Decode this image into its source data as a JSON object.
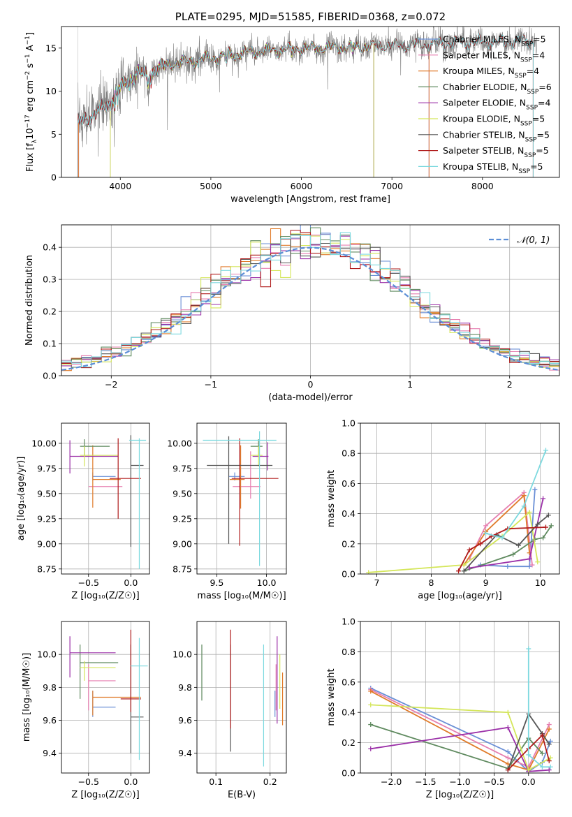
{
  "colors": {
    "Chabrier MILES": "#6a8fd6",
    "Salpeter MILES": "#e67fb0",
    "Kroupa MILES": "#e07b2a",
    "Chabrier ELODIE": "#5f8a5f",
    "Salpeter ELODIE": "#9b30a8",
    "Kroupa ELODIE": "#d4e65a",
    "Chabrier STELIB": "#555555",
    "Salpeter STELIB": "#b01c1c",
    "Kroupa STELIB": "#7dd9df",
    "observed": "#808080",
    "gaussian": "#5b8ed6"
  },
  "chart_data": [
    {
      "id": "spectrum",
      "type": "line",
      "title": "PLATE=0295, MJD=51585, FIBERID=0368, z=0.072",
      "xlabel": "wavelength [Angstrom, rest frame]",
      "ylabel_main": "Flux [f",
      "ylabel_sub": "λ",
      "ylabel_rest": "10",
      "ylabel_exp": "−17",
      "ylabel_units": "erg cm",
      "xlim": [
        3350,
        8850
      ],
      "ylim": [
        0,
        17.5
      ],
      "xticks": [
        4000,
        5000,
        6000,
        7000,
        8000
      ],
      "yticks": [
        0,
        5,
        10,
        15
      ],
      "grid": false,
      "legend_position": "upper-right",
      "continuum_nodes": [
        [
          3520,
          6.2
        ],
        [
          3600,
          6.8
        ],
        [
          3700,
          7.2
        ],
        [
          3800,
          8.0
        ],
        [
          3870,
          8.5
        ],
        [
          3950,
          9.6
        ],
        [
          4000,
          10.4
        ],
        [
          4100,
          11.4
        ],
        [
          4200,
          12.2
        ],
        [
          4300,
          11.8
        ],
        [
          4400,
          12.6
        ],
        [
          4500,
          13.0
        ],
        [
          4700,
          13.4
        ],
        [
          4900,
          13.7
        ],
        [
          5000,
          13.8
        ],
        [
          5200,
          14.3
        ],
        [
          5500,
          14.6
        ],
        [
          6000,
          15.0
        ],
        [
          6500,
          15.1
        ],
        [
          7000,
          15.3
        ],
        [
          7500,
          15.5
        ],
        [
          8000,
          15.7
        ],
        [
          8500,
          15.8
        ],
        [
          8600,
          15.8
        ]
      ],
      "series": [
        {
          "name": "Chabrier MILES",
          "nssp": "5"
        },
        {
          "name": "Salpeter MILES",
          "nssp": "4"
        },
        {
          "name": "Kroupa MILES",
          "nssp": "4"
        },
        {
          "name": "Chabrier ELODIE",
          "nssp": "6"
        },
        {
          "name": "Salpeter ELODIE",
          "nssp": "4"
        },
        {
          "name": "Kroupa ELODIE",
          "nssp": "5"
        },
        {
          "name": "Chabrier STELIB",
          "nssp": "5"
        },
        {
          "name": "Salpeter STELIB",
          "nssp": "5"
        },
        {
          "name": "Kroupa STELIB",
          "nssp": "5"
        }
      ]
    },
    {
      "id": "residuals",
      "type": "line",
      "xlabel": "(data-model)/error",
      "ylabel": "Normed distribution",
      "xlim": [
        -2.5,
        2.5
      ],
      "ylim": [
        0,
        0.47
      ],
      "xticks": [
        -2,
        -1,
        0,
        1,
        2
      ],
      "yticks": [
        0.0,
        0.1,
        0.2,
        0.3,
        0.4
      ],
      "grid": true,
      "legend_position": "upper-right",
      "legend_label": "𝒩(0, 1)",
      "bin_width": 0.1
    },
    {
      "id": "age-vs-Z",
      "type": "scatter",
      "xlabel": "Z [log₁₀(Z/Z☉)]",
      "ylabel": "age  [log₁₀(age/yr)]",
      "xlim": [
        -0.82,
        0.22
      ],
      "ylim": [
        8.7,
        10.2
      ],
      "xticks": [
        -0.5,
        0.0
      ],
      "yticks": [
        8.75,
        9.0,
        9.25,
        9.5,
        9.75,
        10.0
      ],
      "grid": true,
      "points": [
        {
          "series": "Chabrier MILES",
          "x": -0.45,
          "y": 9.67,
          "xlo": -0.45,
          "xhi": -0.18,
          "ylo": 9.63,
          "yhi": 9.71
        },
        {
          "series": "Salpeter MILES",
          "x": -0.5,
          "y": 9.57,
          "xlo": -0.5,
          "xhi": -0.1,
          "ylo": 9.57,
          "yhi": 9.57
        },
        {
          "series": "Kroupa MILES",
          "x": -0.45,
          "y": 9.64,
          "xlo": -0.45,
          "xhi": -0.12,
          "ylo": 9.36,
          "yhi": 9.98
        },
        {
          "series": "Chabrier ELODIE",
          "x": -0.55,
          "y": 9.97,
          "xlo": -0.6,
          "xhi": -0.25,
          "ylo": 9.87,
          "yhi": 10.04
        },
        {
          "series": "Salpeter ELODIE",
          "x": -0.72,
          "y": 9.87,
          "xlo": -0.72,
          "xhi": -0.15,
          "ylo": 9.7,
          "yhi": 10.03
        },
        {
          "series": "Kroupa ELODIE",
          "x": -0.55,
          "y": 9.88,
          "xlo": -0.6,
          "xhi": -0.15,
          "ylo": 9.77,
          "yhi": 9.97
        },
        {
          "series": "Chabrier STELIB",
          "x": 0.0,
          "y": 9.78,
          "xlo": 0.0,
          "xhi": 0.15,
          "ylo": 8.97,
          "yhi": 10.08
        },
        {
          "series": "Salpeter STELIB",
          "x": -0.15,
          "y": 9.65,
          "xlo": -0.25,
          "xhi": 0.12,
          "ylo": 9.25,
          "yhi": 10.05
        },
        {
          "series": "Kroupa STELIB",
          "x": 0.1,
          "y": 10.03,
          "xlo": -0.02,
          "xhi": 0.18,
          "ylo": 8.75,
          "yhi": 10.05
        }
      ]
    },
    {
      "id": "age-vs-mass",
      "type": "scatter",
      "xlabel": "mass [log₁₀(M/M☉)]",
      "ylabel": "",
      "xlim": [
        9.3,
        10.2
      ],
      "ylim": [
        8.7,
        10.2
      ],
      "xticks": [
        9.5,
        10.0
      ],
      "yticks": [
        8.75,
        9.0,
        9.25,
        9.5,
        9.75,
        10.0
      ],
      "grid": true,
      "points": [
        {
          "series": "Chabrier MILES",
          "x": 9.68,
          "y": 9.67,
          "xlo": 9.62,
          "xhi": 9.78,
          "ylo": 9.63,
          "yhi": 9.71
        },
        {
          "series": "Salpeter MILES",
          "x": 9.84,
          "y": 9.57,
          "xlo": 9.66,
          "xhi": 9.94,
          "ylo": 9.45,
          "yhi": 9.92
        },
        {
          "series": "Kroupa MILES",
          "x": 9.74,
          "y": 9.64,
          "xlo": 9.63,
          "xhi": 9.78,
          "ylo": 9.35,
          "yhi": 9.98
        },
        {
          "series": "Chabrier ELODIE",
          "x": 9.92,
          "y": 9.97,
          "xlo": 9.84,
          "xhi": 9.96,
          "ylo": 9.87,
          "yhi": 10.04
        },
        {
          "series": "Salpeter ELODIE",
          "x": 10.01,
          "y": 9.87,
          "xlo": 9.86,
          "xhi": 10.02,
          "ylo": 9.73,
          "yhi": 10.01
        },
        {
          "series": "Kroupa ELODIE",
          "x": 9.92,
          "y": 9.88,
          "xlo": 9.84,
          "xhi": 9.96,
          "ylo": 9.77,
          "yhi": 9.97
        },
        {
          "series": "Chabrier STELIB",
          "x": 9.62,
          "y": 9.78,
          "xlo": 9.4,
          "xhi": 10.06,
          "ylo": 9.0,
          "yhi": 10.07
        },
        {
          "series": "Salpeter STELIB",
          "x": 9.73,
          "y": 9.65,
          "xlo": 9.65,
          "xhi": 10.12,
          "ylo": 8.98,
          "yhi": 10.05
        },
        {
          "series": "Kroupa STELIB",
          "x": 9.93,
          "y": 10.03,
          "xlo": 9.36,
          "xhi": 10.1,
          "ylo": 8.78,
          "yhi": 10.12
        }
      ]
    },
    {
      "id": "weight-vs-age",
      "type": "line",
      "xlabel": "age  [log₁₀(age/yr)]",
      "ylabel": "mass weight",
      "xlim": [
        6.7,
        10.35
      ],
      "ylim": [
        0,
        1
      ],
      "xticks": [
        7,
        8,
        9,
        10
      ],
      "yticks": [
        0.0,
        0.2,
        0.4,
        0.6,
        0.8,
        1.0
      ],
      "grid": true,
      "series": [
        {
          "name": "Chabrier MILES",
          "x": [
            8.9,
            9.4,
            9.8,
            9.9
          ],
          "y": [
            0.06,
            0.05,
            0.05,
            0.56
          ]
        },
        {
          "name": "Salpeter MILES",
          "x": [
            8.7,
            9.0,
            9.7,
            9.85
          ],
          "y": [
            0.1,
            0.32,
            0.54,
            0.06
          ]
        },
        {
          "name": "Kroupa MILES",
          "x": [
            8.6,
            9.0,
            9.7,
            9.8
          ],
          "y": [
            0.06,
            0.28,
            0.52,
            0.14
          ]
        },
        {
          "name": "Chabrier ELODIE",
          "x": [
            8.6,
            9.5,
            9.9,
            10.05,
            10.2
          ],
          "y": [
            0.02,
            0.13,
            0.23,
            0.24,
            0.32
          ]
        },
        {
          "name": "Salpeter ELODIE",
          "x": [
            8.7,
            9.8,
            10.05
          ],
          "y": [
            0.04,
            0.1,
            0.5
          ]
        },
        {
          "name": "Kroupa ELODIE",
          "x": [
            6.85,
            8.6,
            9.3,
            9.8,
            9.95
          ],
          "y": [
            0.01,
            0.06,
            0.25,
            0.41,
            0.08
          ]
        },
        {
          "name": "Chabrier STELIB",
          "x": [
            8.6,
            9.2,
            9.6,
            9.95,
            10.15
          ],
          "y": [
            0.02,
            0.26,
            0.19,
            0.33,
            0.39
          ]
        },
        {
          "name": "Salpeter STELIB",
          "x": [
            8.5,
            8.7,
            8.9,
            9.1,
            9.4,
            10.1
          ],
          "y": [
            0.02,
            0.16,
            0.2,
            0.25,
            0.3,
            0.31
          ]
        },
        {
          "name": "Kroupa STELIB",
          "x": [
            9.0,
            9.3,
            9.7,
            10.1
          ],
          "y": [
            0.27,
            0.24,
            0.45,
            0.82
          ]
        }
      ]
    },
    {
      "id": "mass-vs-Z",
      "type": "scatter",
      "xlabel": "Z [log₁₀(Z/Z☉)]",
      "ylabel": "mass [log₁₀(M/M☉)]",
      "xlim": [
        -0.82,
        0.22
      ],
      "ylim": [
        9.28,
        10.2
      ],
      "xticks": [
        -0.5,
        0.0
      ],
      "yticks": [
        9.4,
        9.6,
        9.8,
        10.0
      ],
      "grid": true,
      "points": [
        {
          "series": "Chabrier MILES",
          "x": -0.45,
          "y": 9.68,
          "xlo": -0.45,
          "xhi": -0.18,
          "ylo": 9.62,
          "yhi": 9.78
        },
        {
          "series": "Salpeter MILES",
          "x": -0.5,
          "y": 9.84,
          "xlo": -0.5,
          "xhi": -0.18,
          "ylo": 9.66,
          "yhi": 9.94
        },
        {
          "series": "Kroupa MILES",
          "x": -0.45,
          "y": 9.74,
          "xlo": -0.45,
          "xhi": 0.12,
          "ylo": 9.63,
          "yhi": 9.78
        },
        {
          "series": "Chabrier ELODIE",
          "x": -0.6,
          "y": 9.95,
          "xlo": -0.6,
          "xhi": -0.15,
          "ylo": 9.73,
          "yhi": 10.06
        },
        {
          "series": "Salpeter ELODIE",
          "x": -0.72,
          "y": 10.01,
          "xlo": -0.72,
          "xhi": -0.18,
          "ylo": 9.86,
          "yhi": 10.11
        },
        {
          "series": "Kroupa ELODIE",
          "x": -0.55,
          "y": 9.92,
          "xlo": -0.6,
          "xhi": -0.18,
          "ylo": 9.84,
          "yhi": 9.96
        },
        {
          "series": "Chabrier STELIB",
          "x": 0.0,
          "y": 9.62,
          "xlo": 0.0,
          "xhi": 0.15,
          "ylo": 9.4,
          "yhi": 10.06
        },
        {
          "series": "Salpeter STELIB",
          "x": 0.0,
          "y": 9.73,
          "xlo": -0.12,
          "xhi": 0.12,
          "ylo": 9.65,
          "yhi": 10.15
        },
        {
          "series": "Kroupa STELIB",
          "x": 0.1,
          "y": 9.93,
          "xlo": 0.0,
          "xhi": 0.2,
          "ylo": 9.36,
          "yhi": 10.1
        }
      ]
    },
    {
      "id": "mass-vs-ebv",
      "type": "scatter",
      "xlabel": "E(B-V)",
      "ylabel": "",
      "xlim": [
        0.065,
        0.23
      ],
      "ylim": [
        9.28,
        10.2
      ],
      "xticks": [
        0.1,
        0.2
      ],
      "yticks": [
        9.4,
        9.6,
        9.8,
        10.0
      ],
      "grid": true,
      "points": [
        {
          "series": "Chabrier MILES",
          "x": 0.209,
          "y": 9.68,
          "xlo": 0.209,
          "xhi": 0.209,
          "ylo": 9.62,
          "yhi": 9.78
        },
        {
          "series": "Salpeter MILES",
          "x": 0.211,
          "y": 9.84,
          "xlo": 0.211,
          "xhi": 0.211,
          "ylo": 9.66,
          "yhi": 9.94
        },
        {
          "series": "Kroupa MILES",
          "x": 0.223,
          "y": 9.74,
          "xlo": 0.223,
          "xhi": 0.223,
          "ylo": 9.57,
          "yhi": 9.89
        },
        {
          "series": "Chabrier ELODIE",
          "x": 0.074,
          "y": 9.89,
          "xlo": 0.074,
          "xhi": 0.074,
          "ylo": 9.72,
          "yhi": 10.06
        },
        {
          "series": "Salpeter ELODIE",
          "x": 0.213,
          "y": 10.01,
          "xlo": 0.213,
          "xhi": 0.213,
          "ylo": 9.58,
          "yhi": 10.11
        },
        {
          "series": "Kroupa ELODIE",
          "x": 0.218,
          "y": 9.92,
          "xlo": 0.218,
          "xhi": 0.218,
          "ylo": 9.67,
          "yhi": 10.0
        },
        {
          "series": "Chabrier STELIB",
          "x": 0.127,
          "y": 9.62,
          "xlo": 0.127,
          "xhi": 0.127,
          "ylo": 9.41,
          "yhi": 10.06
        },
        {
          "series": "Salpeter STELIB",
          "x": 0.127,
          "y": 9.73,
          "xlo": 0.127,
          "xhi": 0.127,
          "ylo": 9.55,
          "yhi": 10.15
        },
        {
          "series": "Kroupa STELIB",
          "x": 0.188,
          "y": 9.93,
          "xlo": 0.188,
          "xhi": 0.188,
          "ylo": 9.32,
          "yhi": 10.06
        }
      ]
    },
    {
      "id": "weight-vs-Z",
      "type": "line",
      "xlabel": "Z [log₁₀(Z/Z☉)]",
      "ylabel": "mass weight",
      "xlim": [
        -2.45,
        0.45
      ],
      "ylim": [
        0,
        1
      ],
      "xticks": [
        -2.0,
        -1.5,
        -1.0,
        -0.5,
        0.0
      ],
      "yticks": [
        0.0,
        0.2,
        0.4,
        0.6,
        0.8,
        1.0
      ],
      "grid": true,
      "series": [
        {
          "name": "Chabrier MILES",
          "x": [
            -2.3,
            -0.3,
            0.0,
            0.2,
            0.32
          ],
          "y": [
            0.56,
            0.14,
            0.01,
            0.07,
            0.21
          ]
        },
        {
          "name": "Salpeter MILES",
          "x": [
            -2.3,
            -0.3,
            0.0,
            0.3
          ],
          "y": [
            0.55,
            0.1,
            0.04,
            0.32
          ]
        },
        {
          "name": "Kroupa MILES",
          "x": [
            -2.3,
            -0.3,
            0.0,
            0.3
          ],
          "y": [
            0.54,
            0.06,
            0.02,
            0.29
          ]
        },
        {
          "name": "Chabrier ELODIE",
          "x": [
            -2.3,
            -0.3,
            0.0,
            0.2
          ],
          "y": [
            0.32,
            0.03,
            0.23,
            0.13
          ]
        },
        {
          "name": "Salpeter ELODIE",
          "x": [
            -2.3,
            -0.3,
            0.0,
            0.3
          ],
          "y": [
            0.16,
            0.3,
            0.01,
            0.02
          ]
        },
        {
          "name": "Kroupa ELODIE",
          "x": [
            -2.3,
            -0.3,
            0.0,
            0.32
          ],
          "y": [
            0.45,
            0.4,
            0.02,
            0.1
          ]
        },
        {
          "name": "Chabrier STELIB",
          "x": [
            -0.3,
            0.0,
            0.2,
            0.3
          ],
          "y": [
            0.02,
            0.39,
            0.26,
            0.19
          ]
        },
        {
          "name": "Salpeter STELIB",
          "x": [
            -0.3,
            0.0,
            0.2,
            0.3
          ],
          "y": [
            0.02,
            0.16,
            0.25,
            0.08
          ]
        },
        {
          "name": "Kroupa STELIB",
          "x": [
            0.0,
            0.0,
            0.2,
            0.32
          ],
          "y": [
            0.82,
            0.12,
            0.04,
            0.04
          ]
        }
      ]
    }
  ]
}
